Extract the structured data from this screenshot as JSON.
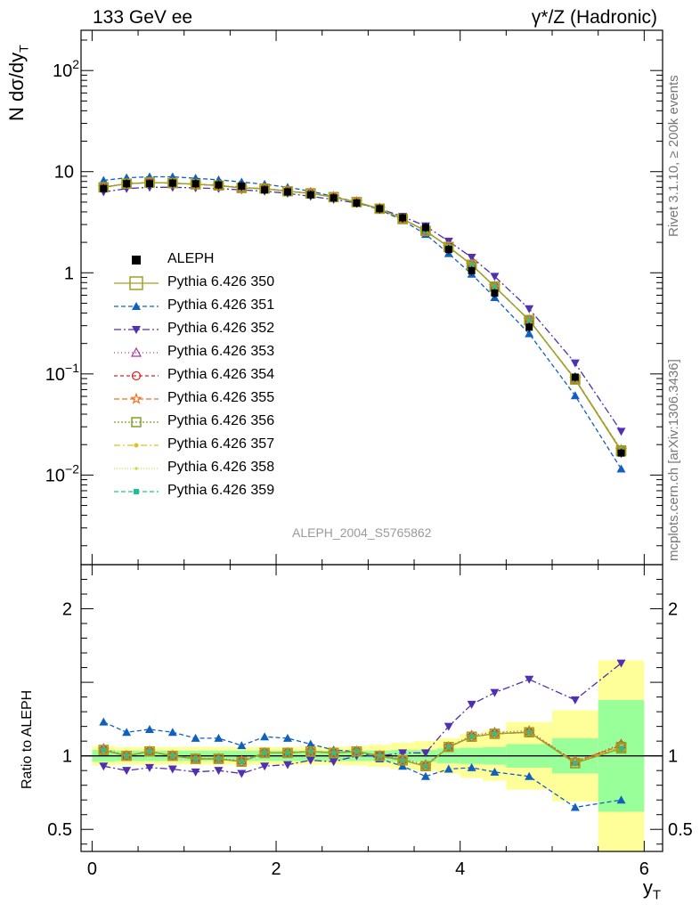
{
  "header": {
    "left": "133 GeV ee",
    "right": "γ*/Z (Hadronic)"
  },
  "side_labels": {
    "rivet": "Rivet 3.1.10, ≥ 200k events",
    "source": "mcplots.cern.ch [arXiv:1306.3436]"
  },
  "watermark": "ALEPH_2004_S5765862",
  "colors": {
    "data": "#000000",
    "band_outer": "#ffff99",
    "band_inner": "#99ff99"
  },
  "chart_data": [
    {
      "type": "line",
      "panel": "main",
      "yscale": "log",
      "ylabel": "N dσ/dy",
      "ylabel_sub": "T",
      "xlim": [
        -0.12,
        6.2
      ],
      "ylim": [
        0.0013,
        250
      ],
      "yticks": [
        {
          "value": 0.01,
          "label": "10",
          "exp": "−2"
        },
        {
          "value": 0.1,
          "label": "10",
          "exp": "−1"
        },
        {
          "value": 1,
          "label": "1",
          "exp": ""
        },
        {
          "value": 10,
          "label": "10",
          "exp": ""
        },
        {
          "value": 100,
          "label": "10",
          "exp": "2"
        }
      ],
      "x": [
        0.125,
        0.375,
        0.625,
        0.875,
        1.125,
        1.375,
        1.625,
        1.875,
        2.125,
        2.375,
        2.625,
        2.875,
        3.125,
        3.375,
        3.625,
        3.875,
        4.125,
        4.375,
        4.75,
        5.25,
        5.75
      ],
      "data_points": {
        "name": "ALEPH",
        "values": [
          6.8,
          7.6,
          7.6,
          7.7,
          7.6,
          7.4,
          7.2,
          6.6,
          6.3,
          5.9,
          5.5,
          4.9,
          4.3,
          3.5,
          2.8,
          1.7,
          1.05,
          0.63,
          0.29,
          0.093,
          0.0165
        ]
      },
      "series": [
        {
          "name": "Pythia 6.426 350",
          "color": "#a0a020",
          "dash": "",
          "marker": "open-square",
          "values": [
            7.0,
            7.6,
            7.8,
            7.7,
            7.5,
            7.3,
            6.9,
            6.8,
            6.4,
            6.1,
            5.6,
            5.0,
            4.3,
            3.4,
            2.6,
            1.8,
            1.2,
            0.73,
            0.34,
            0.088,
            0.0172
          ]
        },
        {
          "name": "Pythia 6.426 351",
          "color": "#1060c0",
          "dash": "5,3",
          "marker": "triangle-up",
          "values": [
            8.2,
            8.7,
            8.9,
            8.9,
            8.6,
            8.3,
            7.9,
            7.5,
            7.0,
            6.4,
            5.7,
            5.0,
            4.2,
            3.3,
            2.4,
            1.55,
            0.97,
            0.57,
            0.25,
            0.061,
            0.0115
          ]
        },
        {
          "name": "Pythia 6.426 352",
          "color": "#5030b0",
          "dash": "8,3,2,3",
          "marker": "triangle-down",
          "values": [
            6.3,
            6.8,
            7.0,
            7.0,
            6.9,
            6.8,
            6.6,
            6.4,
            6.1,
            5.7,
            5.3,
            4.9,
            4.3,
            3.6,
            2.9,
            2.05,
            1.42,
            0.92,
            0.44,
            0.128,
            0.027
          ]
        },
        {
          "name": "Pythia 6.426 353",
          "color": "#b030a0",
          "dash": "1,3",
          "marker": "open-triangle",
          "values": [
            7.1,
            7.6,
            7.8,
            7.7,
            7.5,
            7.3,
            7.0,
            6.8,
            6.4,
            6.1,
            5.6,
            5.0,
            4.3,
            3.4,
            2.6,
            1.8,
            1.2,
            0.73,
            0.34,
            0.088,
            0.0178
          ]
        },
        {
          "name": "Pythia 6.426 354",
          "color": "#e02020",
          "dash": "4,3",
          "marker": "open-circle",
          "values": [
            7.0,
            7.6,
            7.8,
            7.7,
            7.5,
            7.3,
            6.9,
            6.8,
            6.4,
            6.1,
            5.6,
            5.0,
            4.3,
            3.4,
            2.6,
            1.8,
            1.2,
            0.73,
            0.34,
            0.089,
            0.0176
          ]
        },
        {
          "name": "Pythia 6.426 355",
          "color": "#f07020",
          "dash": "6,3",
          "marker": "open-star",
          "values": [
            7.0,
            7.6,
            7.8,
            7.7,
            7.5,
            7.3,
            6.9,
            6.8,
            6.4,
            6.1,
            5.6,
            5.0,
            4.3,
            3.4,
            2.6,
            1.8,
            1.2,
            0.73,
            0.34,
            0.089,
            0.0176
          ]
        },
        {
          "name": "Pythia 6.426 356",
          "color": "#80a020",
          "dash": "2,2",
          "marker": "open-square",
          "values": [
            7.0,
            7.6,
            7.8,
            7.7,
            7.5,
            7.3,
            6.9,
            6.8,
            6.4,
            6.1,
            5.6,
            5.0,
            4.3,
            3.4,
            2.6,
            1.8,
            1.2,
            0.73,
            0.34,
            0.088,
            0.0175
          ]
        },
        {
          "name": "Pythia 6.426 357",
          "color": "#e0c020",
          "dash": "7,3,2,3",
          "marker": "small-star",
          "values": [
            7.0,
            7.6,
            7.8,
            7.7,
            7.5,
            7.3,
            6.9,
            6.8,
            6.4,
            6.1,
            5.6,
            5.0,
            4.3,
            3.4,
            2.6,
            1.8,
            1.2,
            0.73,
            0.34,
            0.088,
            0.0175
          ]
        },
        {
          "name": "Pythia 6.426 358",
          "color": "#c8e040",
          "dash": "1,2",
          "marker": "small-dot",
          "values": [
            7.0,
            7.6,
            7.8,
            7.7,
            7.5,
            7.3,
            6.9,
            6.8,
            6.4,
            6.1,
            5.6,
            5.0,
            4.3,
            3.4,
            2.6,
            1.8,
            1.2,
            0.73,
            0.34,
            0.088,
            0.0175
          ]
        },
        {
          "name": "Pythia 6.426 359",
          "color": "#20c090",
          "dash": "5,3",
          "marker": "filled-square",
          "values": [
            7.0,
            7.6,
            7.8,
            7.7,
            7.5,
            7.3,
            6.9,
            6.8,
            6.4,
            6.1,
            5.6,
            5.0,
            4.3,
            3.4,
            2.6,
            1.8,
            1.2,
            0.73,
            0.34,
            0.088,
            0.0174
          ]
        }
      ]
    },
    {
      "type": "line",
      "panel": "ratio",
      "ylabel": "Ratio to ALEPH",
      "xlabel": "y",
      "xlabel_sub": "T",
      "xlim": [
        -0.12,
        6.2
      ],
      "ylim": [
        0.35,
        2.3
      ],
      "xticks": [
        0,
        2,
        4,
        6
      ],
      "yticks": [
        0.5,
        1,
        2
      ],
      "bins": [
        [
          0,
          0.25
        ],
        [
          0.25,
          0.5
        ],
        [
          0.5,
          0.75
        ],
        [
          0.75,
          1.0
        ],
        [
          1.0,
          1.25
        ],
        [
          1.25,
          1.5
        ],
        [
          1.5,
          1.75
        ],
        [
          1.75,
          2.0
        ],
        [
          2.0,
          2.25
        ],
        [
          2.25,
          2.5
        ],
        [
          2.5,
          2.75
        ],
        [
          2.75,
          3.0
        ],
        [
          3.0,
          3.25
        ],
        [
          3.25,
          3.5
        ],
        [
          3.5,
          3.75
        ],
        [
          3.75,
          4.0
        ],
        [
          4.0,
          4.25
        ],
        [
          4.25,
          4.5
        ],
        [
          4.5,
          5.0
        ],
        [
          5.0,
          5.5
        ],
        [
          5.5,
          6.0
        ]
      ],
      "band_inner": [
        0.04,
        0.035,
        0.035,
        0.035,
        0.035,
        0.035,
        0.035,
        0.035,
        0.035,
        0.035,
        0.035,
        0.035,
        0.035,
        0.04,
        0.04,
        0.05,
        0.055,
        0.06,
        0.08,
        0.12,
        0.38
      ],
      "band_outer": [
        0.065,
        0.06,
        0.06,
        0.06,
        0.06,
        0.06,
        0.06,
        0.06,
        0.06,
        0.06,
        0.06,
        0.065,
        0.075,
        0.09,
        0.1,
        0.12,
        0.15,
        0.17,
        0.23,
        0.31,
        0.65
      ],
      "series": [
        {
          "name": "Pythia 6.426 350",
          "values": [
            1.04,
            1.0,
            1.03,
            1.0,
            0.98,
            0.98,
            0.96,
            1.02,
            1.02,
            1.03,
            1.02,
            1.03,
            1.0,
            0.97,
            0.93,
            1.06,
            1.13,
            1.15,
            1.16,
            0.95,
            1.05
          ]
        },
        {
          "name": "Pythia 6.426 351",
          "values": [
            1.23,
            1.16,
            1.18,
            1.16,
            1.12,
            1.12,
            1.07,
            1.13,
            1.12,
            1.08,
            1.04,
            1.03,
            0.98,
            0.93,
            0.86,
            0.91,
            0.92,
            0.89,
            0.86,
            0.65,
            0.7
          ]
        },
        {
          "name": "Pythia 6.426 352",
          "values": [
            0.93,
            0.9,
            0.92,
            0.91,
            0.89,
            0.9,
            0.88,
            0.93,
            0.94,
            0.97,
            0.96,
            1.0,
            1.0,
            1.02,
            1.02,
            1.2,
            1.35,
            1.43,
            1.52,
            1.38,
            1.63
          ]
        },
        {
          "name": "Pythia 6.426 353",
          "values": [
            1.05,
            1.0,
            1.03,
            1.0,
            0.98,
            0.98,
            0.97,
            1.02,
            1.02,
            1.03,
            1.02,
            1.03,
            1.0,
            0.98,
            0.94,
            1.06,
            1.14,
            1.16,
            1.17,
            0.96,
            1.08
          ]
        },
        {
          "name": "Pythia 6.426 354",
          "values": [
            1.04,
            1.0,
            1.03,
            1.0,
            0.98,
            0.98,
            0.96,
            1.02,
            1.02,
            1.03,
            1.02,
            1.03,
            1.0,
            0.97,
            0.93,
            1.06,
            1.13,
            1.15,
            1.16,
            0.96,
            1.07
          ]
        },
        {
          "name": "Pythia 6.426 355",
          "values": [
            1.04,
            1.0,
            1.03,
            1.0,
            0.98,
            0.98,
            0.96,
            1.02,
            1.02,
            1.03,
            1.02,
            1.03,
            1.0,
            0.97,
            0.93,
            1.06,
            1.13,
            1.15,
            1.16,
            0.96,
            1.07
          ]
        },
        {
          "name": "Pythia 6.426 356",
          "values": [
            1.04,
            1.0,
            1.03,
            1.0,
            0.98,
            0.98,
            0.96,
            1.02,
            1.02,
            1.03,
            1.02,
            1.03,
            1.0,
            0.97,
            0.93,
            1.06,
            1.13,
            1.15,
            1.16,
            0.95,
            1.06
          ]
        },
        {
          "name": "Pythia 6.426 357",
          "values": [
            1.04,
            1.0,
            1.03,
            1.0,
            0.98,
            0.98,
            0.96,
            1.02,
            1.02,
            1.03,
            1.02,
            1.03,
            1.0,
            0.97,
            0.93,
            1.06,
            1.13,
            1.15,
            1.16,
            0.95,
            1.06
          ]
        },
        {
          "name": "Pythia 6.426 358",
          "values": [
            1.04,
            1.0,
            1.03,
            1.0,
            0.98,
            0.98,
            0.96,
            1.02,
            1.02,
            1.03,
            1.02,
            1.03,
            1.0,
            0.97,
            0.93,
            1.06,
            1.13,
            1.15,
            1.16,
            0.95,
            1.06
          ]
        },
        {
          "name": "Pythia 6.426 359",
          "values": [
            1.04,
            1.0,
            1.03,
            1.0,
            0.98,
            0.98,
            0.96,
            1.02,
            1.02,
            1.03,
            1.02,
            1.03,
            1.0,
            0.97,
            0.93,
            1.06,
            1.13,
            1.15,
            1.16,
            0.95,
            1.05
          ]
        }
      ]
    }
  ]
}
